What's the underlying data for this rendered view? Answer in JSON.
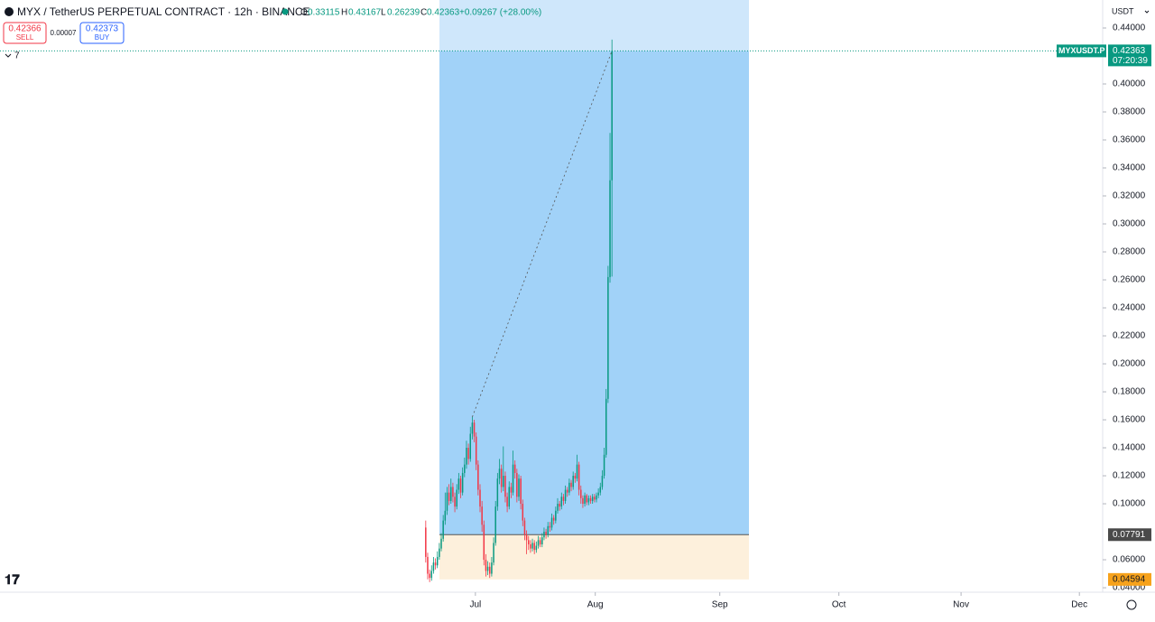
{
  "toolbar": {
    "symbol": "MYX / TetherUS PERPETUAL CONTRACT · 12h · BINANCE",
    "o_label": "O",
    "o": 0.33115,
    "h_label": "H",
    "h": 0.43167,
    "l_label": "L",
    "l": 0.26239,
    "c_label": "C",
    "c": 0.42363,
    "change": "+0.09267 (+28.00%)",
    "sell_price": 0.42366,
    "sell_label": "SELL",
    "spread": 7e-05,
    "buy_price": 0.42373,
    "buy_label": "BUY",
    "indicators": "7",
    "currency": "USDT"
  },
  "chart_data": {
    "type": "candlestick",
    "up_color": "#089981",
    "down_color": "#f23645",
    "ohlc": [
      [
        0.083,
        0.088,
        0.058,
        0.062
      ],
      [
        0.062,
        0.065,
        0.046,
        0.05
      ],
      [
        0.05,
        0.053,
        0.044,
        0.047
      ],
      [
        0.047,
        0.056,
        0.045,
        0.052
      ],
      [
        0.052,
        0.062,
        0.05,
        0.058
      ],
      [
        0.058,
        0.061,
        0.053,
        0.056
      ],
      [
        0.056,
        0.066,
        0.054,
        0.062
      ],
      [
        0.062,
        0.072,
        0.06,
        0.068
      ],
      [
        0.068,
        0.079,
        0.066,
        0.075
      ],
      [
        0.075,
        0.092,
        0.073,
        0.088
      ],
      [
        0.088,
        0.108,
        0.085,
        0.095
      ],
      [
        0.095,
        0.112,
        0.092,
        0.108
      ],
      [
        0.108,
        0.114,
        0.099,
        0.102
      ],
      [
        0.102,
        0.118,
        0.1,
        0.112
      ],
      [
        0.112,
        0.115,
        0.101,
        0.105
      ],
      [
        0.105,
        0.108,
        0.094,
        0.098
      ],
      [
        0.098,
        0.114,
        0.096,
        0.11
      ],
      [
        0.11,
        0.122,
        0.107,
        0.118
      ],
      [
        0.118,
        0.12,
        0.104,
        0.108
      ],
      [
        0.108,
        0.126,
        0.106,
        0.122
      ],
      [
        0.122,
        0.133,
        0.119,
        0.128
      ],
      [
        0.128,
        0.145,
        0.125,
        0.14
      ],
      [
        0.14,
        0.143,
        0.128,
        0.132
      ],
      [
        0.132,
        0.155,
        0.13,
        0.15
      ],
      [
        0.15,
        0.162,
        0.146,
        0.158
      ],
      [
        0.158,
        0.16,
        0.144,
        0.148
      ],
      [
        0.148,
        0.151,
        0.124,
        0.128
      ],
      [
        0.128,
        0.131,
        0.106,
        0.11
      ],
      [
        0.11,
        0.114,
        0.094,
        0.098
      ],
      [
        0.098,
        0.102,
        0.08,
        0.085
      ],
      [
        0.085,
        0.088,
        0.056,
        0.06
      ],
      [
        0.06,
        0.064,
        0.048,
        0.052
      ],
      [
        0.052,
        0.059,
        0.049,
        0.055
      ],
      [
        0.055,
        0.058,
        0.047,
        0.05
      ],
      [
        0.05,
        0.062,
        0.048,
        0.058
      ],
      [
        0.058,
        0.076,
        0.056,
        0.072
      ],
      [
        0.072,
        0.102,
        0.07,
        0.098
      ],
      [
        0.098,
        0.122,
        0.095,
        0.118
      ],
      [
        0.118,
        0.132,
        0.114,
        0.125
      ],
      [
        0.125,
        0.128,
        0.108,
        0.112
      ],
      [
        0.112,
        0.141,
        0.109,
        0.12
      ],
      [
        0.12,
        0.123,
        0.101,
        0.105
      ],
      [
        0.105,
        0.108,
        0.094,
        0.098
      ],
      [
        0.098,
        0.116,
        0.096,
        0.112
      ],
      [
        0.112,
        0.115,
        0.104,
        0.108
      ],
      [
        0.108,
        0.138,
        0.106,
        0.128
      ],
      [
        0.128,
        0.131,
        0.118,
        0.122
      ],
      [
        0.122,
        0.125,
        0.101,
        0.105
      ],
      [
        0.105,
        0.121,
        0.102,
        0.118
      ],
      [
        0.118,
        0.12,
        0.096,
        0.1
      ],
      [
        0.1,
        0.103,
        0.084,
        0.088
      ],
      [
        0.088,
        0.09,
        0.074,
        0.078
      ],
      [
        0.078,
        0.081,
        0.064,
        0.074
      ],
      [
        0.074,
        0.077,
        0.067,
        0.071
      ],
      [
        0.071,
        0.074,
        0.065,
        0.068
      ],
      [
        0.068,
        0.075,
        0.066,
        0.072
      ],
      [
        0.072,
        0.074,
        0.064,
        0.067
      ],
      [
        0.067,
        0.073,
        0.065,
        0.07
      ],
      [
        0.07,
        0.077,
        0.068,
        0.074
      ],
      [
        0.074,
        0.076,
        0.069,
        0.071
      ],
      [
        0.071,
        0.079,
        0.069,
        0.076
      ],
      [
        0.076,
        0.083,
        0.074,
        0.08
      ],
      [
        0.08,
        0.082,
        0.075,
        0.078
      ],
      [
        0.078,
        0.087,
        0.076,
        0.084
      ],
      [
        0.084,
        0.087,
        0.08,
        0.083
      ],
      [
        0.083,
        0.093,
        0.081,
        0.09
      ],
      [
        0.09,
        0.092,
        0.085,
        0.088
      ],
      [
        0.088,
        0.098,
        0.086,
        0.095
      ],
      [
        0.095,
        0.104,
        0.093,
        0.1
      ],
      [
        0.1,
        0.102,
        0.095,
        0.098
      ],
      [
        0.098,
        0.108,
        0.096,
        0.105
      ],
      [
        0.105,
        0.107,
        0.099,
        0.102
      ],
      [
        0.102,
        0.113,
        0.1,
        0.11
      ],
      [
        0.11,
        0.112,
        0.105,
        0.108
      ],
      [
        0.108,
        0.118,
        0.106,
        0.115
      ],
      [
        0.115,
        0.117,
        0.109,
        0.112
      ],
      [
        0.112,
        0.123,
        0.11,
        0.12
      ],
      [
        0.12,
        0.122,
        0.115,
        0.118
      ],
      [
        0.118,
        0.135,
        0.116,
        0.128
      ],
      [
        0.128,
        0.13,
        0.106,
        0.11
      ],
      [
        0.11,
        0.113,
        0.1,
        0.104
      ],
      [
        0.104,
        0.106,
        0.097,
        0.1
      ],
      [
        0.1,
        0.108,
        0.098,
        0.106
      ],
      [
        0.106,
        0.107,
        0.099,
        0.101
      ],
      [
        0.101,
        0.106,
        0.099,
        0.104
      ],
      [
        0.104,
        0.106,
        0.1,
        0.102
      ],
      [
        0.102,
        0.107,
        0.1,
        0.105
      ],
      [
        0.105,
        0.107,
        0.101,
        0.103
      ],
      [
        0.103,
        0.108,
        0.101,
        0.106
      ],
      [
        0.106,
        0.111,
        0.104,
        0.108
      ],
      [
        0.108,
        0.115,
        0.106,
        0.112
      ],
      [
        0.112,
        0.124,
        0.11,
        0.12
      ],
      [
        0.12,
        0.14,
        0.118,
        0.135
      ],
      [
        0.135,
        0.182,
        0.133,
        0.175
      ],
      [
        0.175,
        0.27,
        0.172,
        0.262
      ],
      [
        0.262,
        0.365,
        0.258,
        0.33115
      ],
      [
        0.33115,
        0.43167,
        0.26239,
        0.42363
      ]
    ],
    "xlim": [
      -219.5,
      349
    ],
    "xticks": [
      {
        "value": 25.6,
        "label": "Jul"
      },
      {
        "value": 87.4,
        "label": "Aug"
      },
      {
        "value": 151.6,
        "label": "Sep"
      },
      {
        "value": 213,
        "label": "Oct"
      },
      {
        "value": 276,
        "label": "Nov"
      },
      {
        "value": 337,
        "label": "Dec"
      }
    ],
    "ylim": [
      0.0368,
      0.46
    ],
    "yticks": [
      {
        "value": 0.04,
        "label": "0.04000"
      },
      {
        "value": 0.06,
        "label": "0.06000"
      },
      {
        "value": 0.1,
        "label": "0.10000"
      },
      {
        "value": 0.12,
        "label": "0.12000"
      },
      {
        "value": 0.14,
        "label": "0.14000"
      },
      {
        "value": 0.16,
        "label": "0.16000"
      },
      {
        "value": 0.18,
        "label": "0.18000"
      },
      {
        "value": 0.2,
        "label": "0.20000"
      },
      {
        "value": 0.22,
        "label": "0.22000"
      },
      {
        "value": 0.24,
        "label": "0.24000"
      },
      {
        "value": 0.26,
        "label": "0.26000"
      },
      {
        "value": 0.28,
        "label": "0.28000"
      },
      {
        "value": 0.3,
        "label": "0.30000"
      },
      {
        "value": 0.32,
        "label": "0.32000"
      },
      {
        "value": 0.34,
        "label": "0.34000"
      },
      {
        "value": 0.36,
        "label": "0.36000"
      },
      {
        "value": 0.38,
        "label": "0.38000"
      },
      {
        "value": 0.4,
        "label": "0.40000"
      },
      {
        "value": 0.44,
        "label": "0.44000"
      }
    ],
    "last_price": {
      "symbol": "MYXUSDT.P",
      "value": 0.42363,
      "countdown": "07:20:39"
    },
    "position": {
      "entry": 0.07791,
      "stop": 0.04594
    }
  }
}
